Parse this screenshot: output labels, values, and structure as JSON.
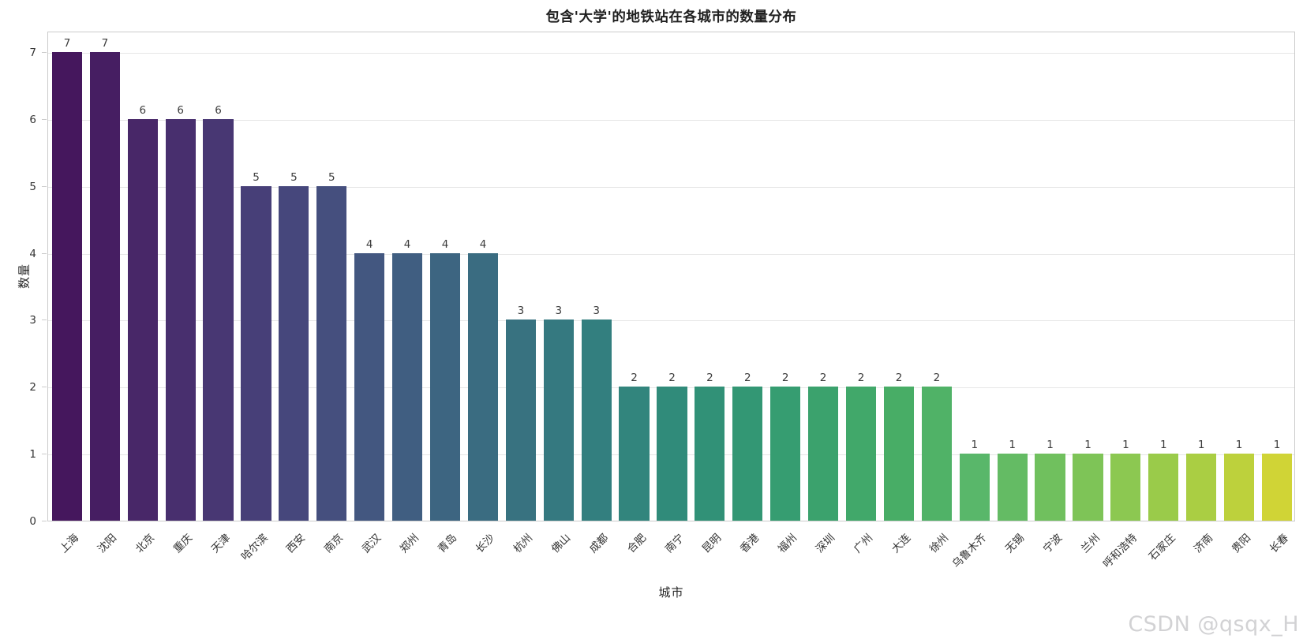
{
  "figure": {
    "watermark": "CSDN @qsqx_H"
  },
  "chart_data": {
    "type": "bar",
    "title": "包含'大学'的地铁站在各城市的数量分布",
    "xlabel": "城市",
    "ylabel": "数量",
    "ylim": [
      0,
      7.32
    ],
    "yticks": [
      0,
      1,
      2,
      3,
      4,
      5,
      6,
      7
    ],
    "grid": true,
    "legend": null,
    "palette": "viridis",
    "categories": [
      "上海",
      "沈阳",
      "北京",
      "重庆",
      "天津",
      "哈尔滨",
      "西安",
      "南京",
      "武汉",
      "郑州",
      "青岛",
      "长沙",
      "杭州",
      "佛山",
      "成都",
      "合肥",
      "南宁",
      "昆明",
      "香港",
      "福州",
      "深圳",
      "广州",
      "大连",
      "徐州",
      "乌鲁木齐",
      "无锡",
      "宁波",
      "兰州",
      "呼和浩特",
      "石家庄",
      "济南",
      "贵阳",
      "长春"
    ],
    "values": [
      7,
      7,
      6,
      6,
      6,
      5,
      5,
      5,
      4,
      4,
      4,
      4,
      3,
      3,
      3,
      2,
      2,
      2,
      2,
      2,
      2,
      2,
      2,
      2,
      1,
      1,
      1,
      1,
      1,
      1,
      1,
      1,
      1
    ],
    "bar_colors": [
      "#45175d",
      "#461e62",
      "#482768",
      "#482f6e",
      "#483773",
      "#473f78",
      "#46477c",
      "#454f7e",
      "#435780",
      "#405e81",
      "#3d6581",
      "#3a6c81",
      "#387280",
      "#357980",
      "#337f7f",
      "#32857d",
      "#308b7a",
      "#319177",
      "#339774",
      "#369d71",
      "#3ba26d",
      "#41a86a",
      "#48ad66",
      "#50b267",
      "#59b76a",
      "#64bb64",
      "#70c05e",
      "#7ec457",
      "#8cc851",
      "#9acb4a",
      "#aace43",
      "#bdd13c",
      "#d0d436"
    ]
  }
}
